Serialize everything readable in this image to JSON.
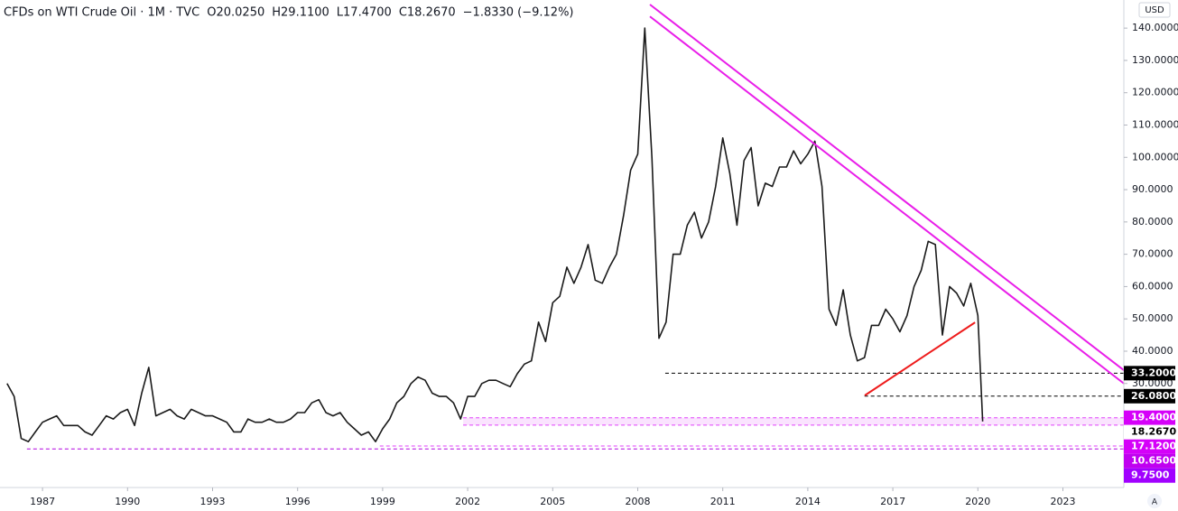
{
  "chart_data": {
    "type": "line",
    "title": "CFDs on WTI Crude Oil · 1M · TVC",
    "legend_values": [
      "O20.0250",
      "H29.1100",
      "L17.4700",
      "C18.2670",
      "−1.8330 (−9.12%)"
    ],
    "currency": "USD",
    "scale_mode": "A",
    "color": "#1a1a1a",
    "x": [
      1985.75,
      1986.0,
      1986.25,
      1986.5,
      1986.75,
      1987.0,
      1987.25,
      1987.5,
      1987.75,
      1988.0,
      1988.25,
      1988.5,
      1988.75,
      1989.0,
      1989.25,
      1989.5,
      1989.75,
      1990.0,
      1990.25,
      1990.5,
      1990.75,
      1991.0,
      1991.25,
      1991.5,
      1991.75,
      1992.0,
      1992.25,
      1992.5,
      1992.75,
      1993.0,
      1993.25,
      1993.5,
      1993.75,
      1994.0,
      1994.25,
      1994.5,
      1994.75,
      1995.0,
      1995.25,
      1995.5,
      1995.75,
      1996.0,
      1996.25,
      1996.5,
      1996.75,
      1997.0,
      1997.25,
      1997.5,
      1997.75,
      1998.0,
      1998.25,
      1998.5,
      1998.75,
      1999.0,
      1999.25,
      1999.5,
      1999.75,
      2000.0,
      2000.25,
      2000.5,
      2000.75,
      2001.0,
      2001.25,
      2001.5,
      2001.75,
      2002.0,
      2002.25,
      2002.5,
      2002.75,
      2003.0,
      2003.25,
      2003.5,
      2003.75,
      2004.0,
      2004.25,
      2004.5,
      2004.75,
      2005.0,
      2005.25,
      2005.5,
      2005.75,
      2006.0,
      2006.25,
      2006.5,
      2006.75,
      2007.0,
      2007.25,
      2007.5,
      2007.75,
      2008.0,
      2008.25,
      2008.5,
      2008.75,
      2009.0,
      2009.25,
      2009.5,
      2009.75,
      2010.0,
      2010.25,
      2010.5,
      2010.75,
      2011.0,
      2011.25,
      2011.5,
      2011.75,
      2012.0,
      2012.25,
      2012.5,
      2012.75,
      2013.0,
      2013.25,
      2013.5,
      2013.75,
      2014.0,
      2014.25,
      2014.5,
      2014.75,
      2015.0,
      2015.25,
      2015.5,
      2015.75,
      2016.0,
      2016.25,
      2016.5,
      2016.75,
      2017.0,
      2017.25,
      2017.5,
      2017.75,
      2018.0,
      2018.25,
      2018.5,
      2018.75,
      2019.0,
      2019.25,
      2019.5,
      2019.75,
      2020.0,
      2020.17
    ],
    "values": [
      30,
      26,
      13,
      12,
      15,
      18,
      19,
      20,
      17,
      17,
      17,
      15,
      14,
      17,
      20,
      19,
      21,
      22,
      17,
      27,
      35,
      20,
      21,
      22,
      20,
      19,
      22,
      21,
      20,
      20,
      19,
      18,
      15,
      15,
      19,
      18,
      18,
      19,
      18,
      18,
      19,
      21,
      21,
      24,
      25,
      21,
      20,
      21,
      18,
      16,
      14,
      15,
      12,
      16,
      19,
      24,
      26,
      30,
      32,
      31,
      27,
      26,
      26,
      24,
      19,
      26,
      26,
      30,
      31,
      31,
      30,
      29,
      33,
      36,
      37,
      49,
      43,
      55,
      57,
      66,
      61,
      66,
      73,
      62,
      61,
      66,
      70,
      82,
      96,
      101,
      140,
      100,
      44,
      49,
      70,
      70,
      79,
      83,
      75,
      80,
      91,
      106,
      95,
      79,
      99,
      103,
      85,
      92,
      91,
      97,
      97,
      102,
      98,
      101,
      105,
      91,
      53,
      48,
      59,
      45,
      37,
      38,
      48,
      48,
      53,
      50,
      46,
      51,
      60,
      65,
      74,
      73,
      45,
      60,
      58,
      54,
      61,
      51,
      18.267
    ],
    "xlim": [
      1985.5,
      2025.15
    ],
    "ylim": [
      -2.2,
      148.7
    ],
    "xticks": [
      1987,
      1990,
      1993,
      1996,
      1999,
      2002,
      2005,
      2008,
      2011,
      2014,
      2017,
      2020,
      2023
    ],
    "yticks": [
      {
        "value": 30,
        "label": "30.0000"
      },
      {
        "value": 40,
        "label": "40.0000"
      },
      {
        "value": 50,
        "label": "50.0000"
      },
      {
        "value": 60,
        "label": "60.0000"
      },
      {
        "value": 70,
        "label": "70.0000"
      },
      {
        "value": 80,
        "label": "80.0000"
      },
      {
        "value": 90,
        "label": "90.0000"
      },
      {
        "value": 100,
        "label": "100.0000"
      },
      {
        "value": 110,
        "label": "110.0000"
      },
      {
        "value": 120,
        "label": "120.0000"
      },
      {
        "value": 130,
        "label": "130.0000"
      },
      {
        "value": 140,
        "label": "140.0000"
      }
    ],
    "levels": [
      {
        "value": 33.2,
        "label": "33.2000",
        "start": 2008.97,
        "line_color": "#000000",
        "bg": "#000000",
        "text_color": "#ffffff",
        "zone": false
      },
      {
        "value": 26.08,
        "label": "26.0800",
        "start": 2016.0,
        "line_color": "#000000",
        "bg": "#000000",
        "text_color": "#ffffff",
        "zone": false
      },
      {
        "value": 19.4,
        "label": "19.4000",
        "start": 2001.84,
        "line_color": "#e040fb",
        "bg": "#d500f9",
        "text_color": "#ffffff",
        "zone": true
      },
      {
        "value": 18.267,
        "label": "18.2670",
        "start": null,
        "line_color": "#000000",
        "bg": "#ffffff",
        "text_color": "#000000",
        "zone": false
      },
      {
        "value": 17.12,
        "label": "17.1200",
        "start": 2001.84,
        "line_color": "#e040fb",
        "bg": "#d500f9",
        "text_color": "#ffffff",
        "zone": true
      },
      {
        "value": 10.65,
        "label": "10.6500",
        "start": 1998.9,
        "line_color": "#e040fb",
        "bg": "#c000f0",
        "text_color": "#ffffff",
        "zone": false
      },
      {
        "value": 9.75,
        "label": "9.7500",
        "start": 1986.45,
        "line_color": "#b000e0",
        "bg": "#a100ff",
        "text_color": "#ffffff",
        "zone": false
      }
    ],
    "trendlines": [
      {
        "x": [
          2008.43,
          2025.15
        ],
        "y": [
          147.3,
          34.1
        ],
        "color": "#e91ee9"
      },
      {
        "x": [
          2008.43,
          2025.15
        ],
        "y": [
          143.6,
          30.0
        ],
        "color": "#e91ee9"
      },
      {
        "x": [
          2016.01,
          2019.9
        ],
        "y": [
          26.3,
          48.9
        ],
        "color": "#ee1c1c"
      }
    ]
  }
}
